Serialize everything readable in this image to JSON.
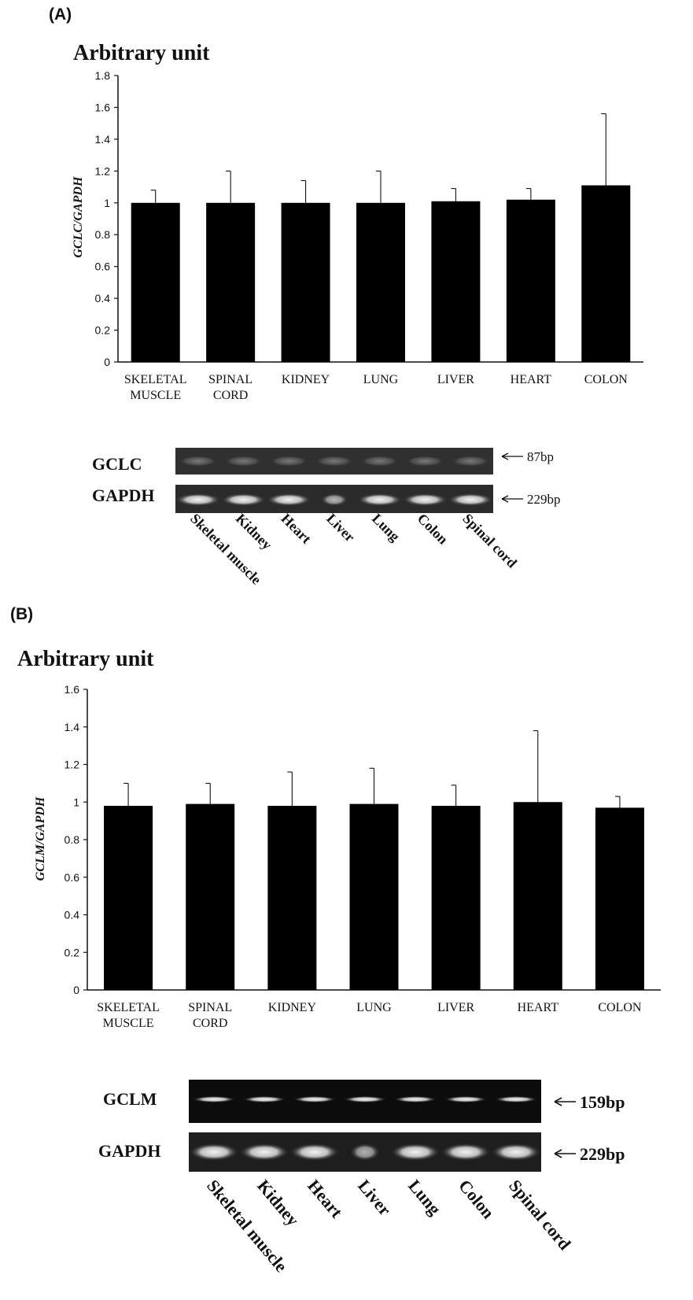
{
  "chart_data": [
    {
      "panel_label": "(A)",
      "type": "bar",
      "unit_label": "Arbitrary unit",
      "ylabel": "GCLC/GAPDH",
      "xlabel": "",
      "ylim": [
        0,
        1.8
      ],
      "yticks": [
        "0",
        "0.2",
        "0.4",
        "0.6",
        "0.8",
        "1",
        "1.2",
        "1.4",
        "1.6",
        "1.8"
      ],
      "categories": [
        [
          "SKELETAL",
          "MUSCLE"
        ],
        [
          "SPINAL",
          "CORD"
        ],
        [
          "KIDNEY"
        ],
        [
          "LUNG"
        ],
        [
          "LIVER"
        ],
        [
          "HEART"
        ],
        [
          "COLON"
        ]
      ],
      "values": [
        1.0,
        1.0,
        1.0,
        1.0,
        1.01,
        1.02,
        1.11
      ],
      "errors": [
        0.08,
        0.2,
        0.14,
        0.2,
        0.08,
        0.07,
        0.45
      ],
      "bar_color": "#000000",
      "grid": false,
      "gel": {
        "rows": [
          {
            "name": "GCLC",
            "size": "87bp"
          },
          {
            "name": "GAPDH",
            "size": "229bp"
          }
        ],
        "lanes": [
          "Skeletal muscle",
          "Kidney",
          "Heart",
          "Liver",
          "Lung",
          "Colon",
          "Spinal cord"
        ]
      }
    },
    {
      "panel_label": "(B)",
      "type": "bar",
      "unit_label": "Arbitrary unit",
      "ylabel": "GCLM/GAPDH",
      "xlabel": "",
      "ylim": [
        0,
        1.6
      ],
      "yticks": [
        "0",
        "0.2",
        "0.4",
        "0.6",
        "0.8",
        "1",
        "1.2",
        "1.4",
        "1.6"
      ],
      "categories": [
        [
          "SKELETAL",
          "MUSCLE"
        ],
        [
          "SPINAL",
          "CORD"
        ],
        [
          "KIDNEY"
        ],
        [
          "LUNG"
        ],
        [
          "LIVER"
        ],
        [
          "HEART"
        ],
        [
          "COLON"
        ]
      ],
      "values": [
        0.98,
        0.99,
        0.98,
        0.99,
        0.98,
        1.0,
        0.97
      ],
      "errors": [
        0.12,
        0.11,
        0.18,
        0.19,
        0.11,
        0.38,
        0.06
      ],
      "bar_color": "#000000",
      "grid": false,
      "gel": {
        "rows": [
          {
            "name": "GCLM",
            "size": "159bp"
          },
          {
            "name": "GAPDH",
            "size": "229bp"
          }
        ],
        "lanes": [
          "Skeletal muscle",
          "Kidney",
          "Heart",
          "Liver",
          "Lung",
          "Colon",
          "Spinal cord"
        ]
      }
    }
  ]
}
